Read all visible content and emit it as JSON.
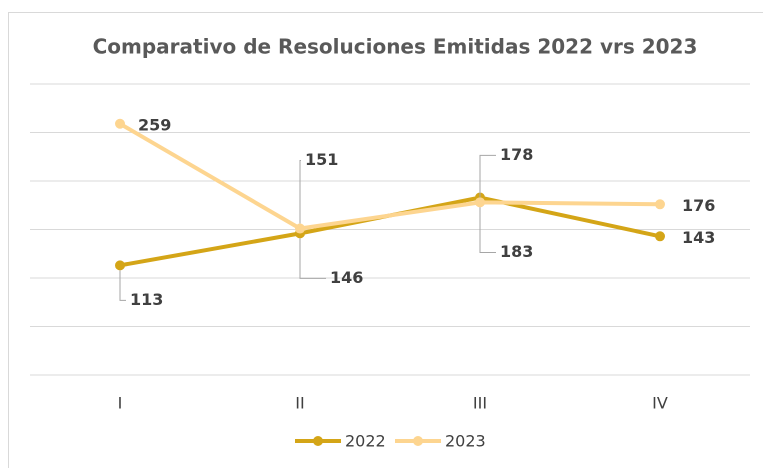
{
  "chart_data": {
    "type": "line",
    "title": "Comparativo de Resoluciones Emitidas 2022 vrs 2023",
    "categories": [
      "I",
      "II",
      "III",
      "IV"
    ],
    "series": [
      {
        "name": "2022",
        "color": "#d4a517",
        "values": [
          113,
          146,
          183,
          143
        ]
      },
      {
        "name": "2023",
        "color": "#fdd590",
        "values": [
          259,
          151,
          178,
          176
        ]
      }
    ],
    "ylim": [
      0,
      300
    ],
    "yticks": [
      0,
      50,
      100,
      150,
      200,
      250,
      300
    ],
    "grid": true,
    "legend": "bottom"
  }
}
